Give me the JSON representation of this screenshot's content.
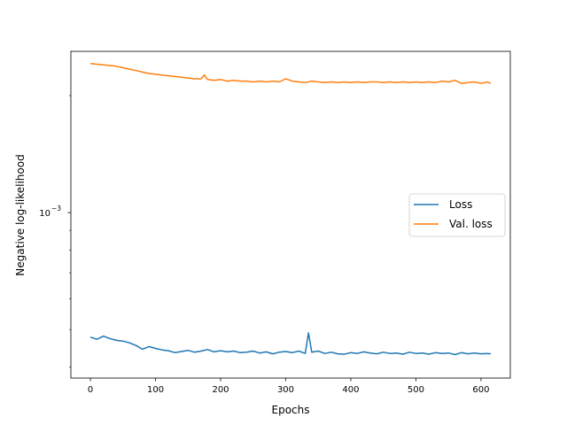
{
  "chart_data": {
    "type": "line",
    "title": "",
    "xlabel": "Epochs",
    "ylabel": "Negative log-likelihood",
    "xlim": [
      -30,
      645
    ],
    "ylim": [
      0.000375,
      0.0026
    ],
    "y_scale": "log",
    "x_ticks": [
      0,
      100,
      200,
      300,
      400,
      500,
      600
    ],
    "x_tick_labels": [
      "0",
      "100",
      "200",
      "300",
      "400",
      "500",
      "600"
    ],
    "y_ticks": [
      0.001
    ],
    "y_tick_labels": [
      {
        "base": "10",
        "exp": "−3"
      }
    ],
    "grid": false,
    "legend_position": "center-right",
    "series": [
      {
        "name": "Loss",
        "color": "#1f77b4",
        "x": [
          0,
          10,
          20,
          30,
          40,
          50,
          60,
          70,
          80,
          90,
          100,
          110,
          120,
          130,
          140,
          150,
          160,
          170,
          180,
          190,
          200,
          210,
          220,
          230,
          240,
          250,
          260,
          270,
          280,
          290,
          300,
          310,
          320,
          330,
          335,
          340,
          350,
          360,
          370,
          380,
          390,
          400,
          410,
          420,
          430,
          440,
          450,
          460,
          470,
          480,
          490,
          500,
          510,
          520,
          530,
          540,
          550,
          560,
          570,
          580,
          590,
          600,
          610,
          615
        ],
        "values": [
          0.000478,
          0.000472,
          0.000481,
          0.000474,
          0.000469,
          0.000467,
          0.000462,
          0.000455,
          0.000445,
          0.000452,
          0.000447,
          0.000443,
          0.000441,
          0.000436,
          0.000439,
          0.000442,
          0.000437,
          0.00044,
          0.000444,
          0.000438,
          0.000441,
          0.000438,
          0.00044,
          0.000436,
          0.000437,
          0.00044,
          0.000435,
          0.000438,
          0.000433,
          0.000437,
          0.000439,
          0.000436,
          0.00044,
          0.000434,
          0.00049,
          0.000437,
          0.00044,
          0.000434,
          0.000437,
          0.000433,
          0.000432,
          0.000436,
          0.000434,
          0.000438,
          0.000435,
          0.000433,
          0.000437,
          0.000434,
          0.000435,
          0.000432,
          0.000437,
          0.000434,
          0.000435,
          0.000432,
          0.000436,
          0.000434,
          0.000435,
          0.000431,
          0.000436,
          0.000433,
          0.000435,
          0.000433,
          0.000434,
          0.000433
        ]
      },
      {
        "name": "Val. loss",
        "color": "#ff7f0e",
        "x": [
          0,
          10,
          20,
          30,
          40,
          50,
          60,
          70,
          80,
          90,
          100,
          110,
          120,
          130,
          140,
          150,
          160,
          170,
          175,
          180,
          190,
          200,
          210,
          220,
          230,
          240,
          250,
          260,
          270,
          280,
          290,
          300,
          310,
          320,
          330,
          340,
          350,
          360,
          370,
          380,
          390,
          400,
          410,
          420,
          430,
          440,
          450,
          460,
          470,
          480,
          490,
          500,
          510,
          520,
          530,
          540,
          550,
          560,
          570,
          580,
          590,
          600,
          610,
          615
        ],
        "values": [
          0.00242,
          0.00241,
          0.0024,
          0.00239,
          0.00238,
          0.00236,
          0.00234,
          0.00232,
          0.0023,
          0.00228,
          0.00227,
          0.00226,
          0.00225,
          0.00224,
          0.00223,
          0.00222,
          0.00221,
          0.00221,
          0.00226,
          0.0022,
          0.00219,
          0.0022,
          0.00218,
          0.00219,
          0.00218,
          0.00218,
          0.00217,
          0.00218,
          0.00217,
          0.00218,
          0.00217,
          0.00221,
          0.00218,
          0.00217,
          0.00216,
          0.00218,
          0.00217,
          0.00216,
          0.00217,
          0.00216,
          0.00217,
          0.00216,
          0.00217,
          0.00216,
          0.00217,
          0.00217,
          0.00216,
          0.00217,
          0.00216,
          0.00217,
          0.00216,
          0.00217,
          0.00216,
          0.00217,
          0.00216,
          0.00218,
          0.00217,
          0.00219,
          0.00215,
          0.00216,
          0.00217,
          0.00215,
          0.00217,
          0.00215
        ]
      }
    ]
  }
}
